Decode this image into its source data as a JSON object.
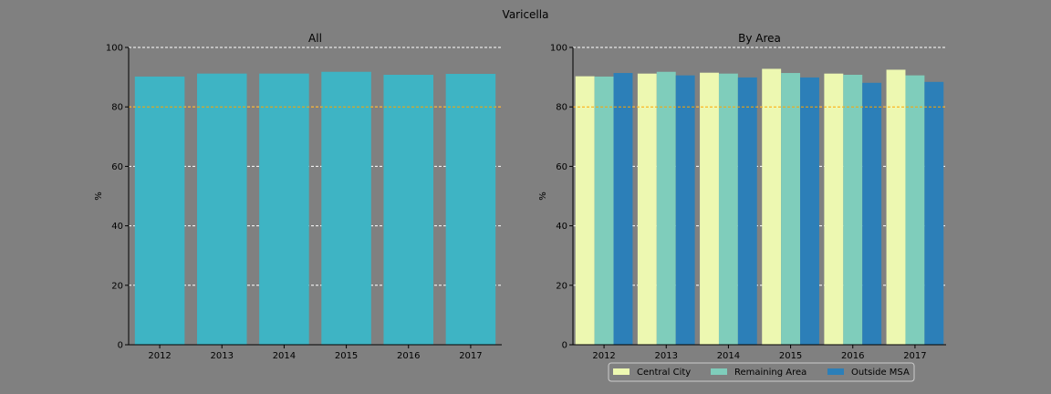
{
  "figure": {
    "title": "Varicella"
  },
  "colors": {
    "background": "#808080",
    "single": "#3eb4c4",
    "central_city": "#edf8b1",
    "remaining_area": "#7fcdbb",
    "outside_msa": "#2c7fb8",
    "target_line": "#ffa500",
    "grid": "#ffffff"
  },
  "chart_data": [
    {
      "type": "bar",
      "title": "All",
      "xlabel": "",
      "ylabel": "%",
      "categories": [
        "2012",
        "2013",
        "2014",
        "2015",
        "2016",
        "2017"
      ],
      "series": [
        {
          "values": [
            90.2,
            91.2,
            91.2,
            91.8,
            90.8,
            91.1
          ]
        }
      ],
      "ylim": [
        0,
        100
      ],
      "yticks": [
        0,
        20,
        40,
        60,
        80,
        100
      ],
      "target_line": 80,
      "grid": "y-dashed",
      "legend": "none"
    },
    {
      "type": "bar",
      "title": "By Area",
      "xlabel": "",
      "ylabel": "%",
      "categories": [
        "2012",
        "2013",
        "2014",
        "2015",
        "2016",
        "2017"
      ],
      "series": [
        {
          "name": "Central City",
          "values": [
            90.3,
            91.2,
            91.5,
            92.8,
            91.2,
            92.5
          ]
        },
        {
          "name": "Remaining Area",
          "values": [
            90.2,
            91.8,
            91.2,
            91.4,
            90.8,
            90.6
          ]
        },
        {
          "name": "Outside MSA",
          "values": [
            91.4,
            90.6,
            89.9,
            89.9,
            88.1,
            88.4
          ]
        }
      ],
      "ylim": [
        0,
        100
      ],
      "yticks": [
        0,
        20,
        40,
        60,
        80,
        100
      ],
      "target_line": 80,
      "grid": "y-dashed",
      "legend": "bottom-center"
    }
  ]
}
